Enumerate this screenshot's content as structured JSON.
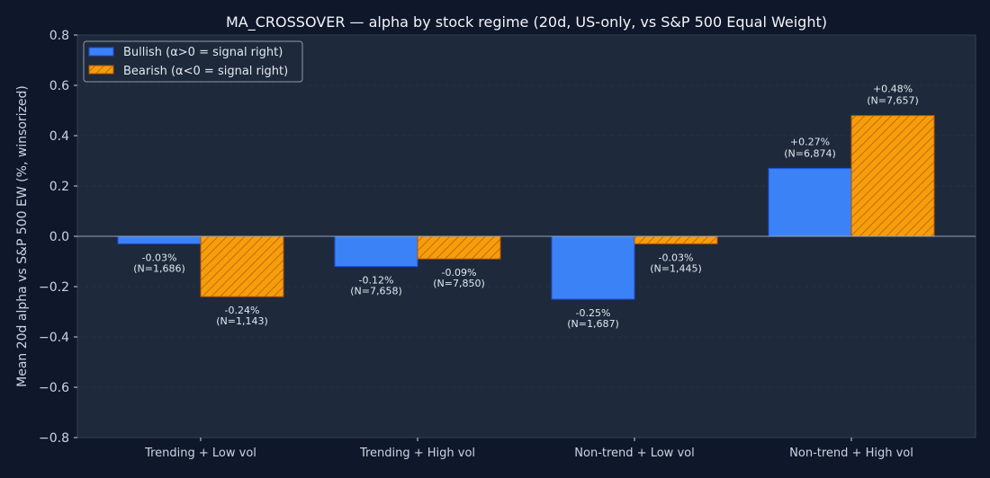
{
  "chart_data": {
    "type": "bar",
    "title": "MA_CROSSOVER — alpha by stock regime (20d, US-only, vs S&P 500 Equal Weight)",
    "xlabel": "",
    "ylabel": "Mean 20d alpha vs S&P 500 EW (%, winsorized)",
    "ylim": [
      -0.8,
      0.8
    ],
    "yticks": [
      -0.8,
      -0.6,
      -0.4,
      -0.2,
      0.0,
      0.2,
      0.4,
      0.6,
      0.8
    ],
    "ytick_labels": [
      "−0.8",
      "−0.6",
      "−0.4",
      "−0.2",
      "0.0",
      "0.2",
      "0.4",
      "0.6",
      "0.8"
    ],
    "grid": true,
    "legend_placement": "top-left",
    "categories": [
      "Trending + Low vol",
      "Trending + High vol",
      "Non-trend + Low vol",
      "Non-trend + High vol"
    ],
    "series": [
      {
        "name": "Bullish (α>0 = signal right)",
        "color": "#3b82f6",
        "edge": "#1d4ed8",
        "hatch": false,
        "values": [
          -0.03,
          -0.12,
          -0.25,
          0.27
        ],
        "labels": [
          "-0.03%",
          "-0.12%",
          "-0.25%",
          "+0.27%"
        ],
        "n_labels": [
          "(N=1,686)",
          "(N=7,658)",
          "(N=1,687)",
          "(N=6,874)"
        ]
      },
      {
        "name": "Bearish (α<0 = signal right)",
        "color": "#f59e0b",
        "edge": "#b45309",
        "hatch": true,
        "values": [
          -0.24,
          -0.09,
          -0.03,
          0.48
        ],
        "labels": [
          "-0.24%",
          "-0.09%",
          "-0.03%",
          "+0.48%"
        ],
        "n_labels": [
          "(N=1,143)",
          "(N=7,850)",
          "(N=1,445)",
          "(N=7,657)"
        ]
      }
    ]
  }
}
